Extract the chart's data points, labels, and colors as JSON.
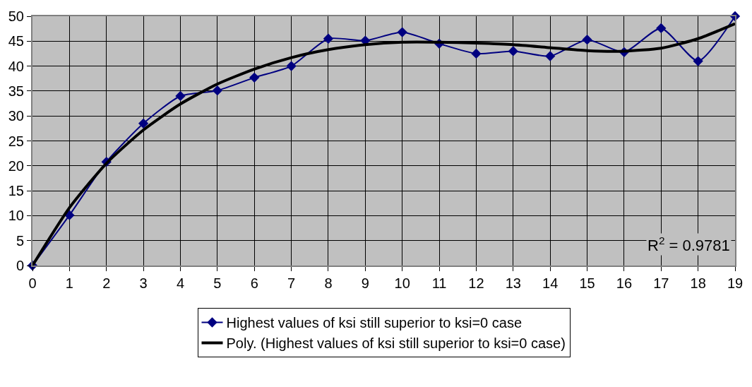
{
  "chart_data": {
    "type": "line",
    "x": [
      0,
      1,
      2,
      3,
      4,
      5,
      6,
      7,
      8,
      9,
      10,
      11,
      12,
      13,
      14,
      15,
      16,
      17,
      18,
      19
    ],
    "series": [
      {
        "name": "Highest values of ksi still superior to ksi=0 case",
        "color": "#000080",
        "marker": "diamond",
        "values": [
          0,
          10.1,
          20.8,
          28.5,
          34.0,
          35.1,
          37.7,
          40.0,
          45.5,
          45.1,
          46.8,
          44.5,
          42.5,
          43.0,
          42.0,
          45.3,
          42.8,
          47.6,
          41.0,
          50
        ]
      },
      {
        "name": "Poly. (Highest values of ksi still superior to ksi=0 case)",
        "color": "#000000",
        "marker": "none",
        "values": [
          0,
          11.6,
          20.5,
          27.2,
          32.4,
          36.4,
          39.4,
          41.7,
          43.3,
          44.3,
          44.8,
          44.8,
          44.6,
          44.3,
          43.7,
          43.1,
          43.0,
          43.6,
          45.5,
          48.5
        ]
      }
    ],
    "xlim": [
      0,
      19
    ],
    "xticks": [
      0,
      1,
      2,
      3,
      4,
      5,
      6,
      7,
      8,
      9,
      10,
      11,
      12,
      13,
      14,
      15,
      16,
      17,
      18,
      19
    ],
    "ylim": [
      0,
      50
    ],
    "yticks": [
      0,
      5,
      10,
      15,
      20,
      25,
      30,
      35,
      40,
      45,
      50
    ],
    "grid": true,
    "legend": "bottom",
    "annotations": [
      "R$^{2}$ = 0.9781"
    ]
  }
}
